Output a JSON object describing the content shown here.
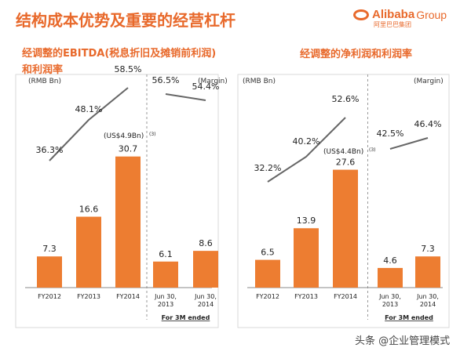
{
  "page": {
    "title": "结构成本优势及重要的经营杠杆",
    "logo_text": "Alibaba",
    "logo_group": "Group",
    "logo_sub": "阿里巴巴集团",
    "footer": "头条 @企业管理模式"
  },
  "chart_data": [
    {
      "type": "bar",
      "title": "经调整的EBITDA(税息折旧及摊销前利润)",
      "title_line2": "和利润率",
      "unit_label": "(RMB Bn)",
      "margin_label": "(Margin)",
      "categories": [
        "FY2012",
        "FY2013",
        "FY2014",
        "Jun 30,\n2013",
        "Jun 30,\n2014"
      ],
      "values": [
        7.3,
        16.6,
        30.7,
        6.1,
        8.6
      ],
      "margins": [
        36.3,
        48.1,
        58.5,
        56.5,
        54.4
      ],
      "margin_labels": [
        "36.3%",
        "48.1%",
        "58.5%",
        "56.5%",
        "54.4%"
      ],
      "usd_note": "(US$4.9Bn)",
      "usd_footnote": "(3)",
      "group_label": "For 3M ended",
      "ylim": [
        0,
        40
      ],
      "color": "#ed7d31"
    },
    {
      "type": "bar",
      "title": "经调整的净利润和利润率",
      "unit_label": "(RMB Bn)",
      "margin_label": "(Margin)",
      "categories": [
        "FY2012",
        "FY2013",
        "FY2014",
        "Jun 30,\n2013",
        "Jun 30,\n2014"
      ],
      "values": [
        6.5,
        13.9,
        27.6,
        4.6,
        7.3
      ],
      "margins": [
        32.2,
        40.2,
        52.6,
        42.5,
        46.4
      ],
      "margin_labels": [
        "32.2%",
        "40.2%",
        "52.6%",
        "42.5%",
        "46.4%"
      ],
      "usd_note": "(US$4.4Bn)",
      "usd_footnote": "(3)",
      "group_label": "For 3M ended",
      "ylim": [
        0,
        40
      ],
      "color": "#ed7d31"
    }
  ]
}
